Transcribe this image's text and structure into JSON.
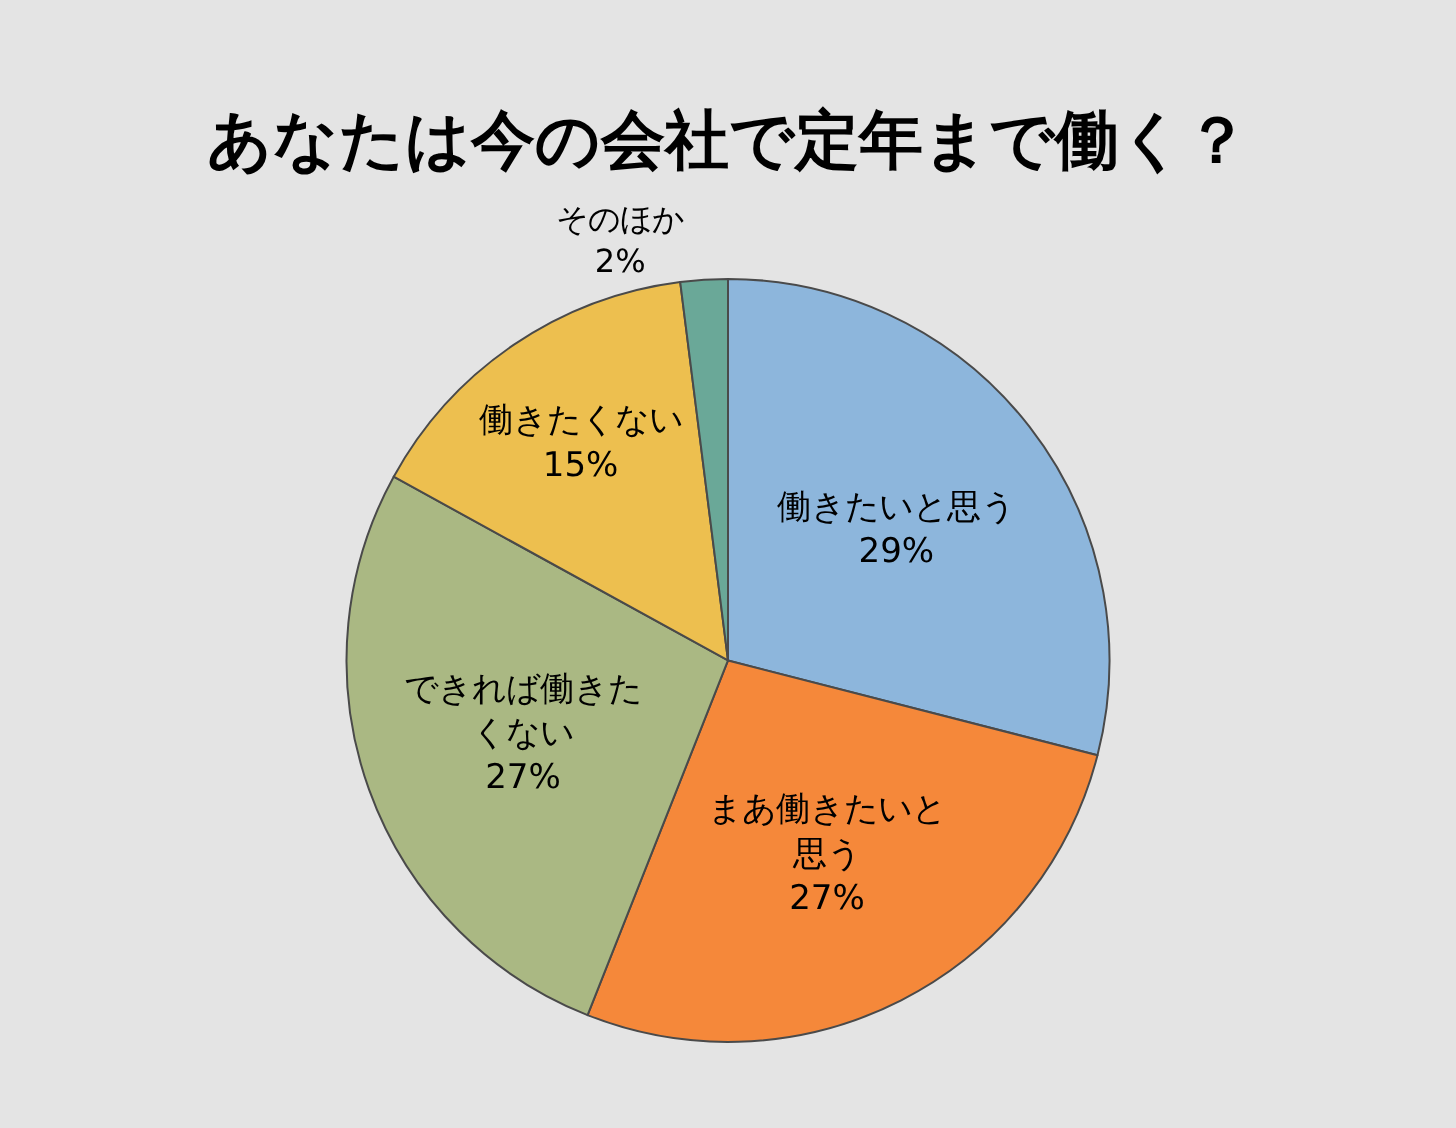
{
  "chart_data": {
    "type": "pie",
    "title": "あなたは今の会社で定年まで働く？",
    "categories": [
      "働きたいと思う",
      "まあ働きたいと思う",
      "できれば働きたくない",
      "働きたくない",
      "そのほか"
    ],
    "values": [
      29,
      27,
      27,
      15,
      2
    ],
    "value_labels": [
      "29%",
      "27%",
      "27%",
      "15%",
      "2%"
    ],
    "colors": [
      "#8db6dc",
      "#f5883a",
      "#aab883",
      "#edbf4f",
      "#6aa898"
    ]
  }
}
